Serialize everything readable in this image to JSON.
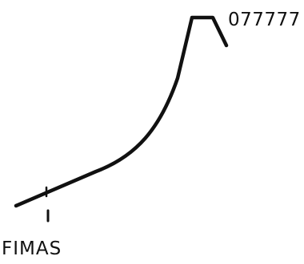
{
  "diagram": {
    "peak_value_label": "077777",
    "marker_label": "FIMAS"
  },
  "colors": {
    "ink": "#111111",
    "background": "#ffffff"
  }
}
